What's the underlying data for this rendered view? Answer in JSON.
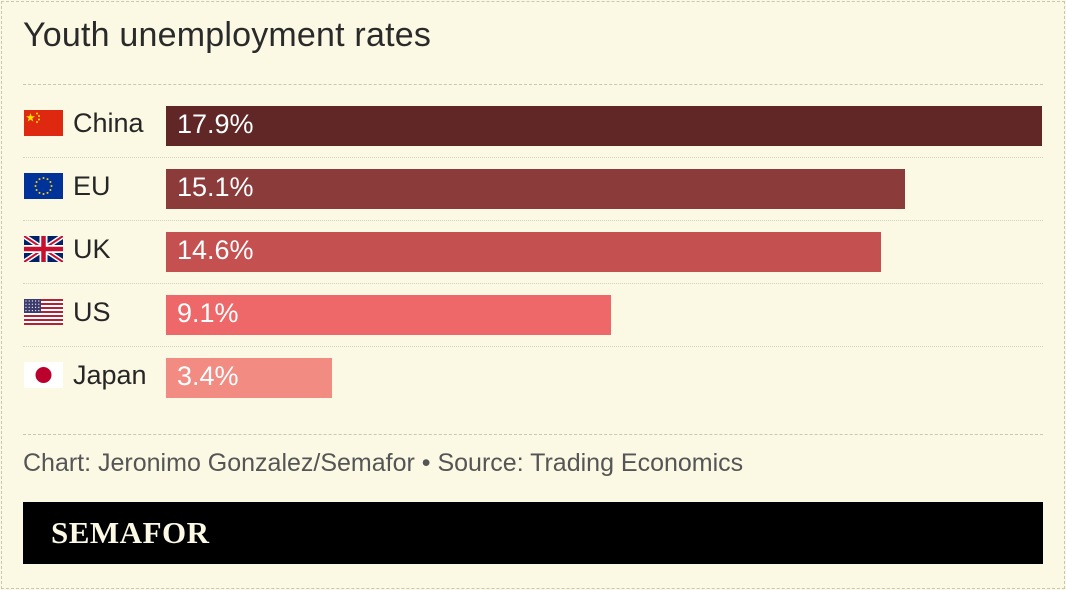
{
  "header": {
    "title": "Youth unemployment rates"
  },
  "chart_data": {
    "type": "bar",
    "orientation": "horizontal",
    "title": "Youth unemployment rates",
    "categories": [
      "China",
      "EU",
      "UK",
      "US",
      "Japan"
    ],
    "values": [
      17.9,
      15.1,
      14.6,
      9.1,
      3.4
    ],
    "value_labels": [
      "17.9%",
      "15.1%",
      "14.6%",
      "9.1%",
      "3.4%"
    ],
    "flags": [
      "china-flag-icon",
      "eu-flag-icon",
      "uk-flag-icon",
      "us-flag-icon",
      "japan-flag-icon"
    ],
    "bar_colors": [
      "#612727",
      "#8c3b3b",
      "#c45050",
      "#ef6869",
      "#f28b82"
    ],
    "xlim": [
      0,
      17.9
    ],
    "grid": false,
    "legend": "none"
  },
  "footer": {
    "source": "Chart: Jeronimo Gonzalez/Semafor • Source: Trading Economics",
    "brand": "SEMAFOR"
  },
  "colors": {
    "background": "#fbf8e4",
    "brand_bar": "#000000",
    "brand_text": "#fbf8e4"
  }
}
